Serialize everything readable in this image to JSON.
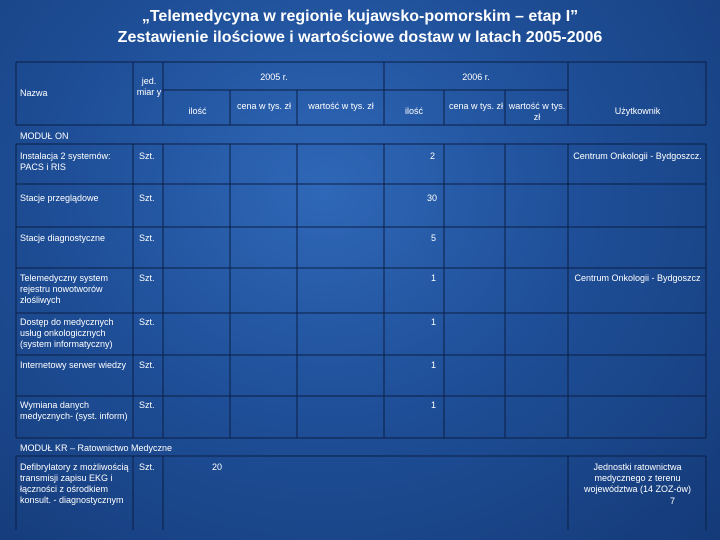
{
  "title": "„Telemedycyna w regionie kujawsko-pomorskim – etap I”",
  "subtitle": "Zestawienie ilościowe i wartościowe dostaw w latach 2005-2006",
  "header": {
    "name": "Nazwa",
    "unit": "jed. miar y",
    "year2005": "2005 r.",
    "year2006": "2006 r.",
    "qty2005": "ilość",
    "price2005": "cena w tys. zł",
    "value2005": "wartość w tys. zł",
    "qty2006": "ilość",
    "price2006": "cena w tys. zł",
    "value2006": "wartość w tys. zł",
    "user": "Użytkownik"
  },
  "section_on": "MODUŁ ON",
  "section_kr": "MODUŁ KR – Ratownictwo Medyczne",
  "rows": [
    {
      "name": "Instalacja 2 systemów: PACS i RIS",
      "unit": "Szt.",
      "qty2006": "2",
      "user": "Centrum Onkologii - Bydgoszcz."
    },
    {
      "name": "Stacje przeglądowe",
      "unit": "Szt.",
      "qty2006": "30",
      "user": ""
    },
    {
      "name": "Stacje diagnostyczne",
      "unit": "Szt.",
      "qty2006": "5",
      "user": ""
    },
    {
      "name": "Telemedyczny system rejestru nowotworów złośliwych",
      "unit": "Szt.",
      "qty2006": "1",
      "user": "Centrum Onkologii - Bydgoszcz"
    },
    {
      "name": "Dostęp do medycznych usług onkologicznych (system informatyczny)",
      "unit": "Szt.",
      "qty2006": "1",
      "user": ""
    },
    {
      "name": "Internetowy serwer wiedzy",
      "unit": "Szt.",
      "qty2006": "1",
      "user": ""
    },
    {
      "name": "Wymiana danych medycznych- (syst. inform)",
      "unit": "Szt.",
      "qty2006": "1",
      "user": ""
    }
  ],
  "kr_row": {
    "name": "Defibrylatory z możliwością transmisji zapisu EKG i łączności z ośrodkiem konsult. - diagnostycznym",
    "unit": "Szt.",
    "qty2005": "20",
    "user": "Jednostki ratownictwa medycznego z terenu województwa (14 ZOZ-ów)",
    "user_count": "7"
  }
}
